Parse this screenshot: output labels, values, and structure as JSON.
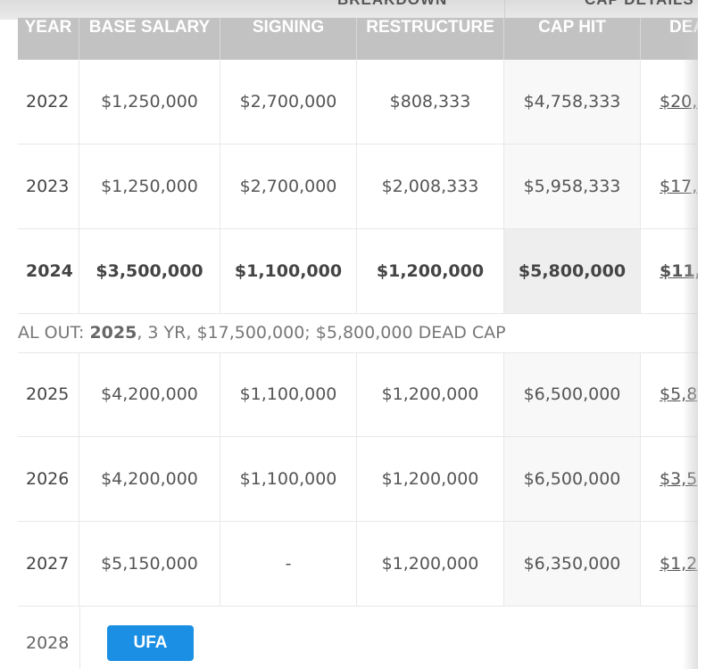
{
  "group_headers": {
    "breakdown": "BREAKDOWN",
    "cap_details": "CAP DETAILS"
  },
  "columns": [
    "YEAR",
    "BASE SALARY",
    "SIGNING",
    "RESTRUCTURE",
    "CAP HIT",
    "DEA"
  ],
  "rows": [
    {
      "year": "2022",
      "base": "$1,250,000",
      "signing": "$2,700,000",
      "restructure": "$808,333",
      "cap_hit": "$4,758,333",
      "dead": "$20,"
    },
    {
      "year": "2023",
      "base": "$1,250,000",
      "signing": "$2,700,000",
      "restructure": "$2,008,333",
      "cap_hit": "$5,958,333",
      "dead": "$17,"
    },
    {
      "year": "2024",
      "base": "$3,500,000",
      "signing": "$1,100,000",
      "restructure": "$1,200,000",
      "cap_hit": "$5,800,000",
      "dead": "$11,"
    },
    {
      "year": "2025",
      "base": "$4,200,000",
      "signing": "$1,100,000",
      "restructure": "$1,200,000",
      "cap_hit": "$6,500,000",
      "dead": "$5,8"
    },
    {
      "year": "2026",
      "base": "$4,200,000",
      "signing": "$1,100,000",
      "restructure": "$1,200,000",
      "cap_hit": "$6,500,000",
      "dead": "$3,5"
    },
    {
      "year": "2027",
      "base": "$5,150,000",
      "signing": "-",
      "restructure": "$1,200,000",
      "cap_hit": "$6,350,000",
      "dead": "$1,2"
    }
  ],
  "notice": {
    "prefix": "AL OUT: ",
    "year": "2025",
    "rest": ", 3 YR, $17,500,000; $5,800,000 DEAD CAP"
  },
  "final_row": {
    "year": "2028",
    "status": "UFA"
  },
  "colors": {
    "header_bg": "#c2c2c2",
    "ufa_button": "#1a8fe3",
    "text": "#555555"
  }
}
